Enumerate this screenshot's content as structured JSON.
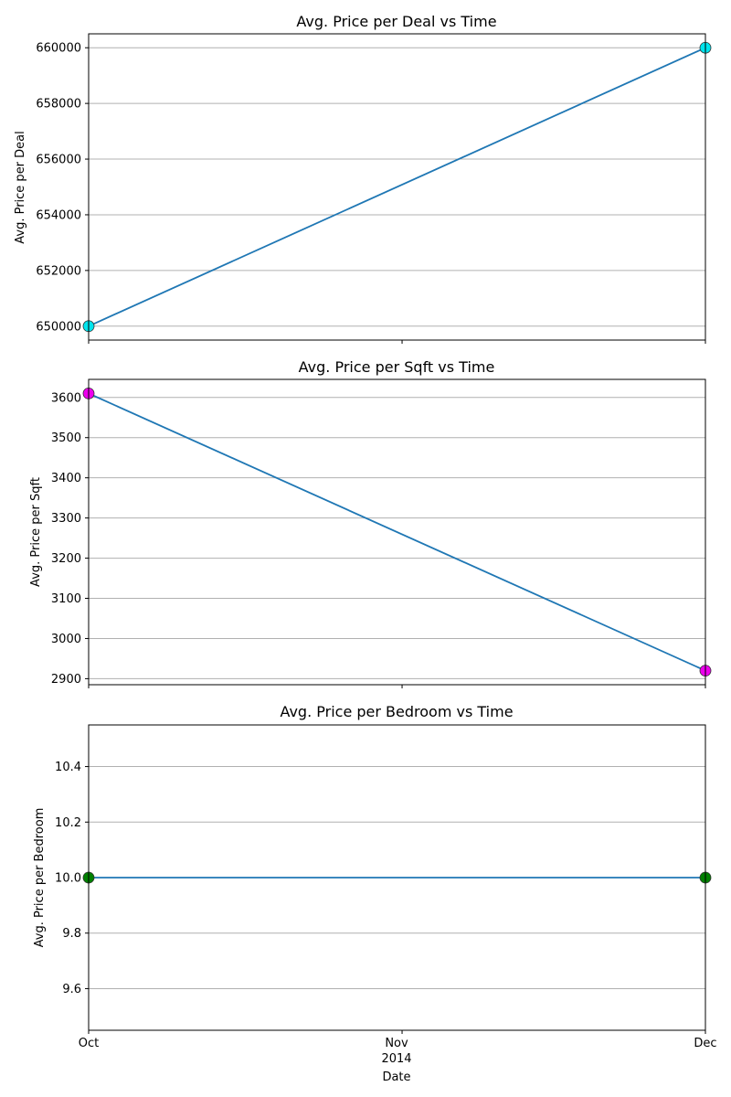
{
  "colors": {
    "line": "#1f77b4",
    "grid": "#b0b0b0"
  },
  "shared_x": {
    "label": "Date",
    "ticks": [
      "Oct",
      "Nov",
      "Dec"
    ],
    "year_label": "2014",
    "range": [
      "2014-10-01",
      "2014-12-01"
    ]
  },
  "chart_data": [
    {
      "type": "line",
      "title": "Avg. Price per Deal vs Time",
      "xlabel": "",
      "ylabel": "Avg. Price per Deal",
      "x": [
        "2014-10-01",
        "2014-12-01"
      ],
      "series": [
        {
          "values": [
            650000,
            660000
          ],
          "line_color": "#1f77b4",
          "marker_color": "#00e5ee"
        }
      ],
      "ylim": [
        649500,
        660500
      ],
      "yticks": [
        650000,
        652000,
        654000,
        656000,
        658000,
        660000
      ],
      "grid": "y"
    },
    {
      "type": "line",
      "title": "Avg. Price per Sqft vs Time",
      "xlabel": "",
      "ylabel": "Avg. Price per Sqft",
      "x": [
        "2014-10-01",
        "2014-12-01"
      ],
      "series": [
        {
          "values": [
            3610,
            2920
          ],
          "line_color": "#1f77b4",
          "marker_color": "#ee00ee"
        }
      ],
      "ylim": [
        2885,
        3645
      ],
      "yticks": [
        2900,
        3000,
        3100,
        3200,
        3300,
        3400,
        3500,
        3600
      ],
      "grid": "y"
    },
    {
      "type": "line",
      "title": "Avg. Price per Bedroom vs Time",
      "xlabel": "Date",
      "ylabel": "Avg. Price per Bedroom",
      "x": [
        "2014-10-01",
        "2014-12-01"
      ],
      "series": [
        {
          "values": [
            10.0,
            10.0
          ],
          "line_color": "#1f77b4",
          "marker_color": "#008000"
        }
      ],
      "ylim": [
        9.45,
        10.55
      ],
      "yticks": [
        9.6,
        9.8,
        10.0,
        10.2,
        10.4
      ],
      "grid": "y"
    }
  ]
}
